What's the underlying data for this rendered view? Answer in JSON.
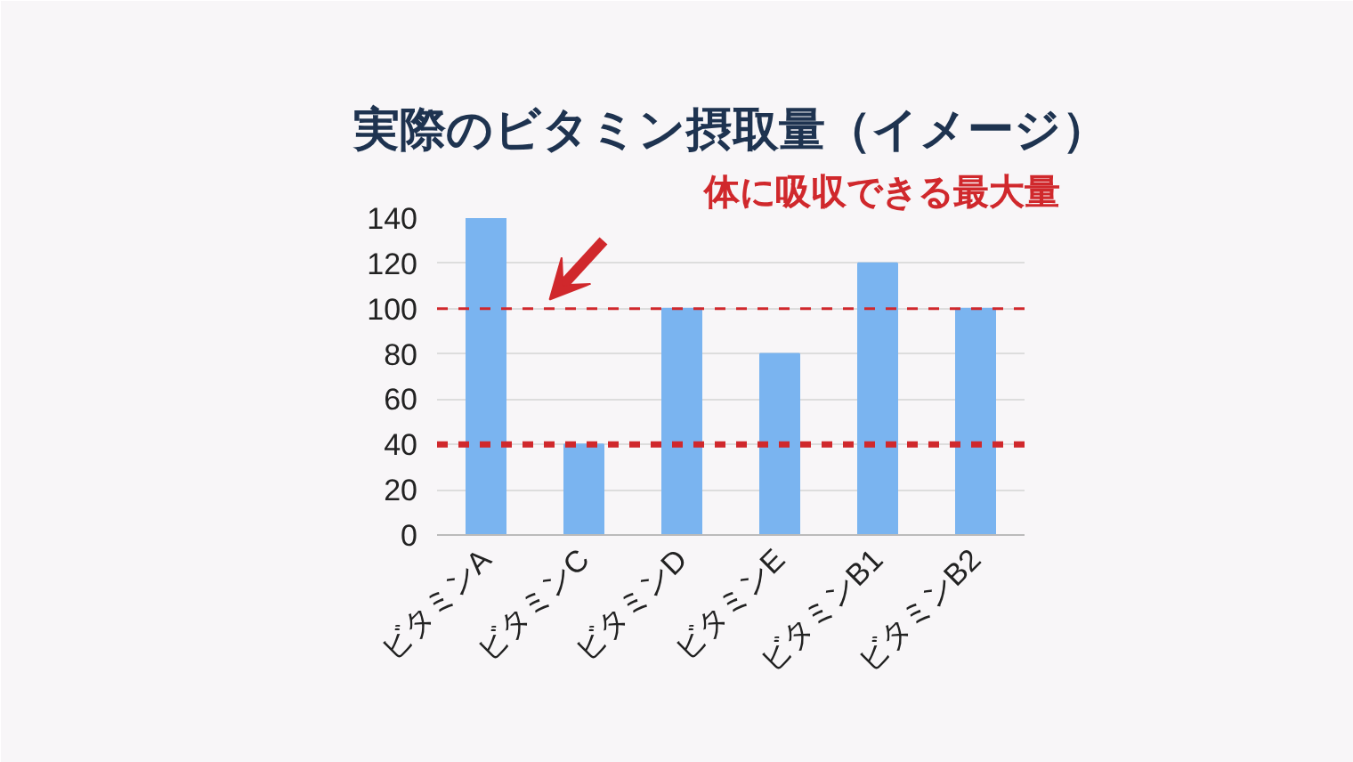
{
  "chart_data": {
    "type": "bar",
    "title": "実際のビタミン摂取量（イメージ）",
    "categories": [
      "ビタミンA",
      "ビタミンC",
      "ビタミンD",
      "ビタミンE",
      "ビタミンB1",
      "ビタミンB2"
    ],
    "values": [
      140,
      40,
      100,
      80,
      120,
      100
    ],
    "color": "#7ab4f0",
    "ylim": [
      0,
      140
    ],
    "yticks": [
      0,
      20,
      40,
      60,
      80,
      100,
      120,
      140
    ],
    "grid": "y",
    "ref_lines": [
      {
        "axis": "y",
        "value": 100,
        "label": "体に吸収できる最大量",
        "color": "#d0282c",
        "line_style": "dashed"
      },
      {
        "axis": "y",
        "value": 40,
        "label": null,
        "color": "#d0282c",
        "line_style": "dashed"
      }
    ]
  }
}
